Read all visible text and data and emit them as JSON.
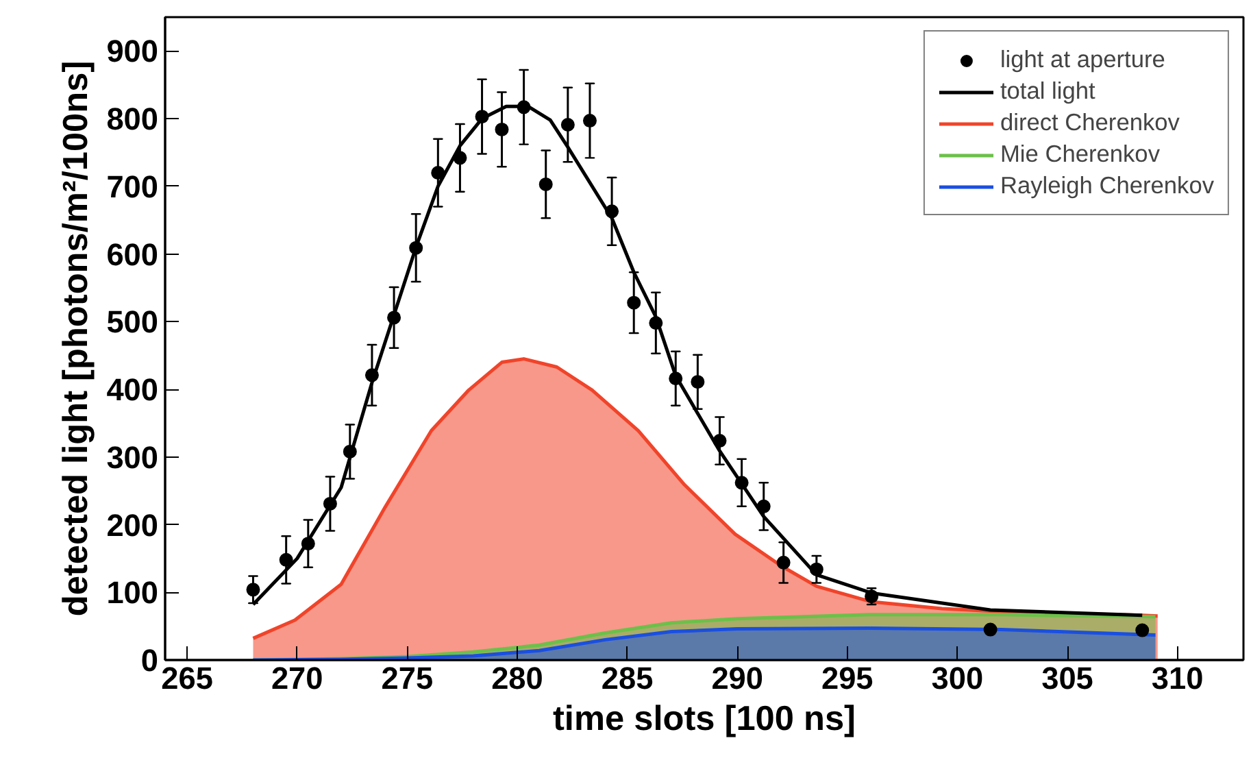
{
  "chart_data": {
    "type": "line",
    "xlabel": "time slots [100 ns]",
    "ylabel": "detected light [photons/m²/100ns]",
    "xlim": [
      264,
      313
    ],
    "ylim": [
      0,
      950
    ],
    "xticks": [
      265,
      270,
      275,
      280,
      285,
      290,
      295,
      300,
      305,
      310
    ],
    "yticks": [
      0,
      100,
      200,
      300,
      400,
      500,
      600,
      700,
      800,
      900
    ],
    "legend": "top right",
    "series": [
      {
        "name": "direct Cherenkov",
        "type": "area",
        "color": "#f0442a",
        "x": [
          268.0,
          269.9,
          272.0,
          274.0,
          276.1,
          277.8,
          279.3,
          280.3,
          281.8,
          283.4,
          285.5,
          287.6,
          289.9,
          292.0,
          293.6,
          296.1,
          299.3,
          302.4,
          308.4,
          309.1
        ],
        "values": [
          32,
          59,
          112,
          226,
          339,
          399,
          440,
          445,
          433,
          399,
          339,
          259,
          186,
          139,
          109,
          86,
          76,
          71,
          66,
          65
        ]
      },
      {
        "name": "Mie Cherenkov",
        "type": "area",
        "color": "#6cc04a",
        "x": [
          268,
          272,
          275,
          278,
          281,
          284,
          287,
          290,
          296,
          302,
          309
        ],
        "values": [
          0,
          2,
          5,
          12,
          22,
          40,
          55,
          61,
          67,
          67,
          64
        ]
      },
      {
        "name": "Rayleigh Cherenkov",
        "type": "area",
        "color": "#1a4fe0",
        "x": [
          268,
          272,
          275,
          278,
          281,
          284,
          287,
          290,
          296,
          302,
          309
        ],
        "values": [
          0,
          1,
          3,
          6,
          14,
          30,
          42,
          46,
          47,
          45,
          37
        ]
      },
      {
        "name": "total light",
        "color": "#000000",
        "x": [
          268,
          270,
          272,
          273.4,
          274.4,
          275.4,
          276.4,
          277.4,
          278.4,
          279.5,
          280.5,
          281.5,
          282.3,
          284.3,
          285.3,
          286.3,
          287.2,
          289.2,
          291.2,
          293.6,
          296.1,
          301.5,
          308.4
        ],
        "values": [
          82,
          150,
          255,
          410,
          510,
          610,
          700,
          760,
          800,
          818,
          818,
          798,
          758,
          653,
          573,
          507,
          420,
          309,
          212,
          126,
          99,
          74,
          66
        ]
      },
      {
        "name": "light at aperture",
        "type": "scatter",
        "marker": "circle",
        "color": "#000000",
        "x": [
          268.0,
          269.5,
          270.5,
          271.5,
          272.4,
          273.4,
          274.4,
          275.4,
          276.4,
          277.4,
          278.4,
          279.3,
          280.3,
          281.3,
          282.3,
          283.3,
          284.3,
          285.3,
          286.3,
          287.2,
          288.2,
          289.2,
          290.2,
          291.2,
          292.1,
          293.6,
          296.1,
          301.5,
          308.4
        ],
        "values": [
          104,
          148,
          172,
          231,
          308,
          421,
          506,
          609,
          720,
          742,
          803,
          784,
          817,
          703,
          791,
          797,
          663,
          528,
          498,
          416,
          411,
          324,
          262,
          227,
          144,
          134,
          94,
          45,
          44
        ],
        "errors": [
          20,
          35,
          35,
          40,
          40,
          45,
          45,
          50,
          50,
          50,
          55,
          55,
          55,
          50,
          55,
          55,
          50,
          45,
          45,
          40,
          40,
          35,
          35,
          35,
          30,
          20,
          12,
          null,
          null
        ]
      }
    ]
  }
}
